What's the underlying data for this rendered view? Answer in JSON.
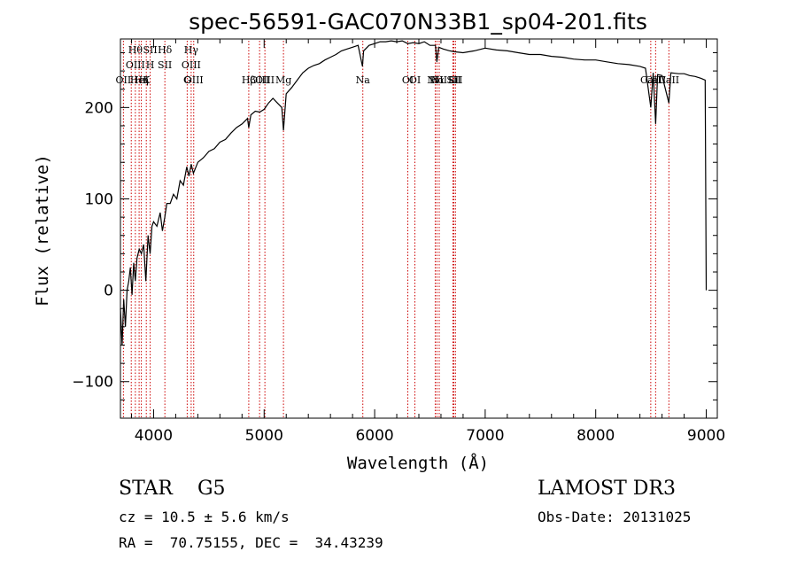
{
  "chart_data": {
    "type": "line",
    "title": "spec-56591-GAC070N33B1_sp04-201.fits",
    "xlabel": "Wavelength (Å)",
    "ylabel": "Flux (relative)",
    "xlim": [
      3700,
      9100
    ],
    "ylim": [
      -140,
      275
    ],
    "xticks": [
      4000,
      5000,
      6000,
      7000,
      8000,
      9000
    ],
    "yticks": [
      -100,
      0,
      100,
      200
    ],
    "grid": false,
    "series": [
      {
        "name": "flux",
        "x": [
          3700,
          3715,
          3730,
          3745,
          3760,
          3775,
          3790,
          3805,
          3820,
          3835,
          3850,
          3870,
          3890,
          3910,
          3930,
          3950,
          3968,
          3985,
          4000,
          4030,
          4060,
          4080,
          4101,
          4120,
          4150,
          4180,
          4210,
          4240,
          4270,
          4300,
          4320,
          4340,
          4360,
          4400,
          4450,
          4500,
          4550,
          4600,
          4650,
          4700,
          4750,
          4800,
          4850,
          4861,
          4880,
          4920,
          4960,
          5000,
          5040,
          5080,
          5120,
          5160,
          5175,
          5200,
          5250,
          5300,
          5350,
          5400,
          5450,
          5500,
          5550,
          5600,
          5650,
          5700,
          5750,
          5800,
          5850,
          5890,
          5900,
          5950,
          6000,
          6050,
          6100,
          6150,
          6200,
          6250,
          6300,
          6350,
          6400,
          6450,
          6500,
          6550,
          6563,
          6580,
          6620,
          6680,
          6720,
          6800,
          6900,
          7000,
          7100,
          7200,
          7300,
          7400,
          7500,
          7600,
          7700,
          7800,
          7900,
          8000,
          8100,
          8200,
          8300,
          8400,
          8450,
          8498,
          8520,
          8542,
          8560,
          8600,
          8662,
          8680,
          8750,
          8800,
          8850,
          8900,
          8950,
          8990,
          9000
        ],
        "values": [
          -20,
          -60,
          -10,
          -40,
          0,
          10,
          25,
          -5,
          30,
          10,
          35,
          45,
          40,
          50,
          10,
          60,
          40,
          70,
          75,
          70,
          85,
          65,
          80,
          95,
          95,
          105,
          100,
          120,
          115,
          135,
          125,
          138,
          128,
          140,
          145,
          152,
          155,
          162,
          165,
          172,
          178,
          182,
          188,
          178,
          192,
          196,
          195,
          198,
          205,
          210,
          205,
          200,
          175,
          215,
          222,
          230,
          238,
          243,
          246,
          248,
          252,
          255,
          258,
          262,
          264,
          266,
          268,
          245,
          262,
          268,
          270,
          272,
          272,
          273,
          272,
          273,
          270,
          271,
          270,
          272,
          268,
          268,
          250,
          266,
          264,
          262,
          261,
          260,
          262,
          265,
          263,
          262,
          260,
          258,
          258,
          256,
          255,
          253,
          252,
          252,
          250,
          248,
          247,
          245,
          243,
          200,
          238,
          182,
          236,
          235,
          205,
          238,
          237,
          237,
          235,
          234,
          232,
          230,
          0
        ]
      }
    ],
    "lines": [
      {
        "wavelength": 3727,
        "labels": [
          "OII"
        ]
      },
      {
        "wavelength": 3798,
        "labels": [
          ""
        ]
      },
      {
        "wavelength": 3835,
        "labels": [
          "Hθ",
          "OIII"
        ]
      },
      {
        "wavelength": 3869,
        "labels": [
          "HeI"
        ]
      },
      {
        "wavelength": 3889,
        "labels": [
          "Hη"
        ]
      },
      {
        "wavelength": 3934,
        "labels": [
          "K"
        ]
      },
      {
        "wavelength": 3969,
        "labels": [
          "SII",
          "H"
        ]
      },
      {
        "wavelength": 4102,
        "labels": [
          "Hδ",
          "SII"
        ]
      },
      {
        "wavelength": 4304,
        "labels": [
          "G"
        ]
      },
      {
        "wavelength": 4340,
        "labels": [
          "Hγ",
          "OIII"
        ]
      },
      {
        "wavelength": 4363,
        "labels": [
          "OIII"
        ]
      },
      {
        "wavelength": 4861,
        "labels": [
          "Hβ"
        ]
      },
      {
        "wavelength": 4959,
        "labels": [
          "OIII"
        ]
      },
      {
        "wavelength": 5007,
        "labels": [
          "OIII"
        ]
      },
      {
        "wavelength": 5175,
        "labels": [
          "Mg"
        ]
      },
      {
        "wavelength": 5893,
        "labels": [
          "Na"
        ]
      },
      {
        "wavelength": 6300,
        "labels": [
          "OI"
        ]
      },
      {
        "wavelength": 6364,
        "labels": [
          "OI"
        ]
      },
      {
        "wavelength": 6548,
        "labels": [
          "NII"
        ]
      },
      {
        "wavelength": 6563,
        "labels": [
          "Hα"
        ]
      },
      {
        "wavelength": 6584,
        "labels": [
          "NII"
        ]
      },
      {
        "wavelength": 6708,
        "labels": [
          "Li"
        ]
      },
      {
        "wavelength": 6716,
        "labels": [
          "SII"
        ]
      },
      {
        "wavelength": 6731,
        "labels": [
          "SII"
        ]
      },
      {
        "wavelength": 8498,
        "labels": [
          "CaII"
        ]
      },
      {
        "wavelength": 8542,
        "labels": [
          "CaII"
        ]
      },
      {
        "wavelength": 8662,
        "labels": [
          "CaII"
        ]
      }
    ]
  },
  "info": {
    "class_line": "STAR    G5",
    "cz_line": "cz = 10.5 ± 5.6 km/s",
    "radec_line": "RA =  70.75155, DEC =  34.43239",
    "survey": "LAMOST DR3",
    "obs_date": "Obs-Date: 20131025"
  },
  "colors": {
    "line_marker": "#cc0000",
    "spectrum": "#000000",
    "axes": "#000000"
  }
}
